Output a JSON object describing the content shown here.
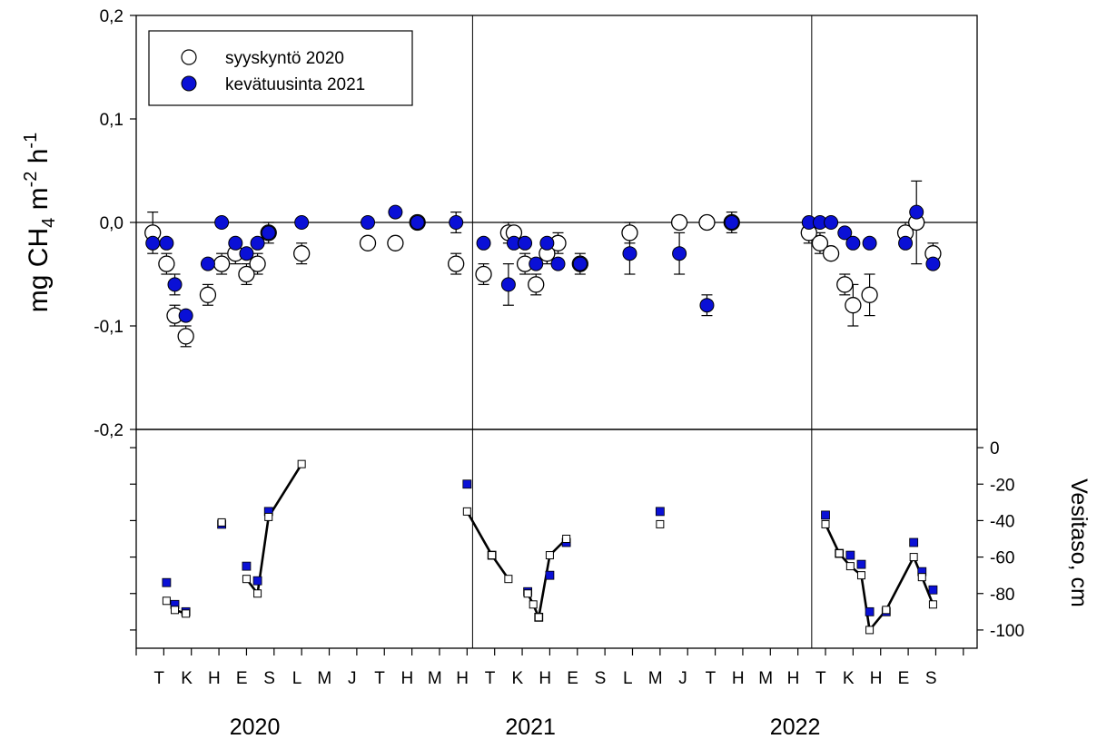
{
  "colors": {
    "axis": "#000000",
    "filled_marker": "#0a10d6",
    "open_marker": "#ffffff",
    "line": "#000000"
  },
  "chart_data": [
    {
      "type": "scatter",
      "ylabel_main": "mg CH",
      "ylabel_sub": "4",
      "ylabel_rest": " m",
      "ylabel_sup1": "-2",
      "ylabel_h": " h",
      "ylabel_sup2": "-1",
      "ylim": [
        -0.2,
        0.2
      ],
      "yticks": [
        {
          "v": 0.2,
          "label": "0,2"
        },
        {
          "v": 0.1,
          "label": "0,1"
        },
        {
          "v": 0.0,
          "label": "0,0"
        },
        {
          "v": -0.1,
          "label": "-0,1"
        },
        {
          "v": -0.2,
          "label": "-0,2"
        }
      ],
      "xlim": [
        0,
        30.5
      ],
      "grid": false,
      "zero_line": true,
      "year_boundaries": [
        12.2,
        24.5
      ],
      "legend_position": "top-left",
      "legend": [
        {
          "label": "syyskyntö 2020",
          "marker": "open-circle"
        },
        {
          "label": "kevätuusinta 2021",
          "marker": "filled-circle"
        }
      ],
      "series": [
        {
          "name": "syyskyntö 2020",
          "marker": "open-circle",
          "points": [
            {
              "x": 0.6,
              "y": -0.01,
              "err": 0.02
            },
            {
              "x": 1.1,
              "y": -0.04,
              "err": 0.01
            },
            {
              "x": 1.4,
              "y": -0.09,
              "err": 0.01
            },
            {
              "x": 1.8,
              "y": -0.11,
              "err": 0.01
            },
            {
              "x": 2.6,
              "y": -0.07,
              "err": 0.01
            },
            {
              "x": 3.1,
              "y": -0.04,
              "err": 0.01
            },
            {
              "x": 3.6,
              "y": -0.03,
              "err": 0.01
            },
            {
              "x": 4.0,
              "y": -0.05,
              "err": 0.01
            },
            {
              "x": 4.4,
              "y": -0.04,
              "err": 0.01
            },
            {
              "x": 4.8,
              "y": -0.01,
              "err": 0.01
            },
            {
              "x": 6.0,
              "y": -0.03,
              "err": 0.01
            },
            {
              "x": 8.4,
              "y": -0.02,
              "err": 0.0
            },
            {
              "x": 9.4,
              "y": -0.02,
              "err": 0.0
            },
            {
              "x": 10.2,
              "y": 0.0,
              "err": 0.0
            },
            {
              "x": 11.6,
              "y": -0.04,
              "err": 0.01
            },
            {
              "x": 12.6,
              "y": -0.05,
              "err": 0.01
            },
            {
              "x": 13.5,
              "y": -0.01,
              "err": 0.01
            },
            {
              "x": 13.7,
              "y": -0.01,
              "err": 0.0
            },
            {
              "x": 14.1,
              "y": -0.04,
              "err": 0.01
            },
            {
              "x": 14.5,
              "y": -0.06,
              "err": 0.01
            },
            {
              "x": 14.9,
              "y": -0.03,
              "err": 0.01
            },
            {
              "x": 15.3,
              "y": -0.02,
              "err": 0.01
            },
            {
              "x": 16.1,
              "y": -0.04,
              "err": 0.01
            },
            {
              "x": 17.9,
              "y": -0.01,
              "err": 0.01
            },
            {
              "x": 19.7,
              "y": 0.0,
              "err": 0.0
            },
            {
              "x": 20.7,
              "y": 0.0,
              "err": 0.0
            },
            {
              "x": 21.6,
              "y": 0.0,
              "err": 0.0
            },
            {
              "x": 24.4,
              "y": -0.01,
              "err": 0.01
            },
            {
              "x": 24.8,
              "y": -0.02,
              "err": 0.01
            },
            {
              "x": 25.2,
              "y": -0.03,
              "err": 0.0
            },
            {
              "x": 25.7,
              "y": -0.06,
              "err": 0.01
            },
            {
              "x": 26.0,
              "y": -0.08,
              "err": 0.02
            },
            {
              "x": 26.6,
              "y": -0.07,
              "err": 0.02
            },
            {
              "x": 27.9,
              "y": -0.01,
              "err": 0.01
            },
            {
              "x": 28.3,
              "y": 0.0,
              "err": 0.04
            },
            {
              "x": 28.9,
              "y": -0.03,
              "err": 0.01
            }
          ]
        },
        {
          "name": "kevätuusinta 2021",
          "marker": "filled-circle",
          "points": [
            {
              "x": 0.6,
              "y": -0.02,
              "err": 0.0
            },
            {
              "x": 1.1,
              "y": -0.02,
              "err": 0.0
            },
            {
              "x": 1.4,
              "y": -0.06,
              "err": 0.01
            },
            {
              "x": 1.8,
              "y": -0.09,
              "err": 0.0
            },
            {
              "x": 2.6,
              "y": -0.04,
              "err": 0.0
            },
            {
              "x": 3.1,
              "y": 0.0,
              "err": 0.0
            },
            {
              "x": 3.6,
              "y": -0.02,
              "err": 0.0
            },
            {
              "x": 4.0,
              "y": -0.03,
              "err": 0.0
            },
            {
              "x": 4.4,
              "y": -0.02,
              "err": 0.0
            },
            {
              "x": 4.8,
              "y": -0.01,
              "err": 0.0
            },
            {
              "x": 6.0,
              "y": 0.0,
              "err": 0.0
            },
            {
              "x": 8.4,
              "y": 0.0,
              "err": 0.0
            },
            {
              "x": 9.4,
              "y": 0.01,
              "err": 0.0
            },
            {
              "x": 10.2,
              "y": 0.0,
              "err": 0.0
            },
            {
              "x": 11.6,
              "y": 0.0,
              "err": 0.01
            },
            {
              "x": 12.6,
              "y": -0.02,
              "err": 0.0
            },
            {
              "x": 13.5,
              "y": -0.06,
              "err": 0.02
            },
            {
              "x": 13.7,
              "y": -0.02,
              "err": 0.0
            },
            {
              "x": 14.1,
              "y": -0.02,
              "err": 0.0
            },
            {
              "x": 14.5,
              "y": -0.04,
              "err": 0.0
            },
            {
              "x": 14.9,
              "y": -0.02,
              "err": 0.0
            },
            {
              "x": 15.3,
              "y": -0.04,
              "err": 0.0
            },
            {
              "x": 16.1,
              "y": -0.04,
              "err": 0.0
            },
            {
              "x": 17.9,
              "y": -0.03,
              "err": 0.02
            },
            {
              "x": 19.7,
              "y": -0.03,
              "err": 0.02
            },
            {
              "x": 20.7,
              "y": -0.08,
              "err": 0.01
            },
            {
              "x": 21.6,
              "y": 0.0,
              "err": 0.01
            },
            {
              "x": 24.4,
              "y": 0.0,
              "err": 0.0
            },
            {
              "x": 24.8,
              "y": 0.0,
              "err": 0.0
            },
            {
              "x": 25.2,
              "y": 0.0,
              "err": 0.0
            },
            {
              "x": 25.7,
              "y": -0.01,
              "err": 0.0
            },
            {
              "x": 26.0,
              "y": -0.02,
              "err": 0.0
            },
            {
              "x": 26.6,
              "y": -0.02,
              "err": 0.0
            },
            {
              "x": 27.9,
              "y": -0.02,
              "err": 0.0
            },
            {
              "x": 28.3,
              "y": 0.01,
              "err": 0.0
            },
            {
              "x": 28.9,
              "y": -0.04,
              "err": 0.0
            }
          ]
        }
      ]
    },
    {
      "type": "line",
      "ylabel": "Vesitaso, cm",
      "ylim": [
        -110,
        10
      ],
      "yticks": [
        {
          "v": 0,
          "label": "0"
        },
        {
          "v": -20,
          "label": "-20"
        },
        {
          "v": -40,
          "label": "-40"
        },
        {
          "v": -60,
          "label": "-60"
        },
        {
          "v": -80,
          "label": "-80"
        },
        {
          "v": -100,
          "label": "-100"
        }
      ],
      "xlim": [
        0,
        30.5
      ],
      "month_ticks": [
        {
          "x": 0.5,
          "label": "T"
        },
        {
          "x": 1.5,
          "label": "K"
        },
        {
          "x": 2.5,
          "label": "H"
        },
        {
          "x": 3.5,
          "label": "E"
        },
        {
          "x": 4.5,
          "label": "S"
        },
        {
          "x": 5.5,
          "label": "L"
        },
        {
          "x": 6.5,
          "label": "M"
        },
        {
          "x": 7.5,
          "label": "J"
        },
        {
          "x": 8.5,
          "label": "T"
        },
        {
          "x": 9.5,
          "label": "H"
        },
        {
          "x": 10.5,
          "label": "M"
        },
        {
          "x": 11.5,
          "label": "H"
        },
        {
          "x": 12.5,
          "label": "T"
        },
        {
          "x": 13.5,
          "label": "K"
        },
        {
          "x": 14.5,
          "label": "H"
        },
        {
          "x": 15.5,
          "label": "E"
        },
        {
          "x": 16.5,
          "label": "S"
        },
        {
          "x": 17.5,
          "label": "L"
        },
        {
          "x": 18.5,
          "label": "M"
        },
        {
          "x": 19.5,
          "label": "J"
        },
        {
          "x": 20.5,
          "label": "T"
        },
        {
          "x": 21.5,
          "label": "H"
        },
        {
          "x": 22.5,
          "label": "M"
        },
        {
          "x": 23.5,
          "label": "H"
        },
        {
          "x": 24.5,
          "label": "T"
        },
        {
          "x": 25.5,
          "label": "K"
        },
        {
          "x": 26.5,
          "label": "H"
        },
        {
          "x": 27.5,
          "label": "E"
        },
        {
          "x": 28.5,
          "label": "S"
        }
      ],
      "years": [
        {
          "x": 4.3,
          "label": "2020"
        },
        {
          "x": 14.3,
          "label": "2021"
        },
        {
          "x": 23.9,
          "label": "2022"
        }
      ],
      "year_boundaries": [
        12.2,
        24.5
      ],
      "series": [
        {
          "name": "syyskyntö 2020",
          "marker": "open-square",
          "points": [
            {
              "x": 1.1,
              "y": -84
            },
            {
              "x": 1.4,
              "y": -89
            },
            {
              "x": 1.8,
              "y": -91
            },
            {
              "x": 3.1,
              "y": -41
            },
            {
              "x": 4.0,
              "y": -72
            },
            {
              "x": 4.4,
              "y": -80
            },
            {
              "x": 4.8,
              "y": -38
            },
            {
              "x": 6.0,
              "y": -9
            },
            {
              "x": 12.0,
              "y": -35
            },
            {
              "x": 12.9,
              "y": -59
            },
            {
              "x": 13.5,
              "y": -72
            },
            {
              "x": 14.2,
              "y": -80
            },
            {
              "x": 14.4,
              "y": -86
            },
            {
              "x": 14.6,
              "y": -93
            },
            {
              "x": 15.0,
              "y": -59
            },
            {
              "x": 15.6,
              "y": -50
            },
            {
              "x": 19.0,
              "y": -42
            },
            {
              "x": 25.0,
              "y": -42
            },
            {
              "x": 25.5,
              "y": -58
            },
            {
              "x": 25.9,
              "y": -65
            },
            {
              "x": 26.3,
              "y": -70
            },
            {
              "x": 26.6,
              "y": -100
            },
            {
              "x": 27.2,
              "y": -89
            },
            {
              "x": 28.2,
              "y": -60
            },
            {
              "x": 28.5,
              "y": -71
            },
            {
              "x": 28.9,
              "y": -86
            }
          ],
          "segments": [
            [
              1,
              2
            ],
            [
              4,
              5,
              6,
              7
            ],
            [
              8,
              9,
              10
            ],
            [
              11,
              12,
              13,
              14,
              15
            ],
            [
              17,
              18,
              19,
              20,
              21,
              22,
              23,
              24,
              25
            ]
          ]
        },
        {
          "name": "kevätuusinta 2021",
          "marker": "filled-square",
          "points": [
            {
              "x": 1.1,
              "y": -74
            },
            {
              "x": 1.4,
              "y": -86
            },
            {
              "x": 1.8,
              "y": -90
            },
            {
              "x": 3.1,
              "y": -42
            },
            {
              "x": 4.0,
              "y": -65
            },
            {
              "x": 4.4,
              "y": -73
            },
            {
              "x": 4.8,
              "y": -35
            },
            {
              "x": 12.0,
              "y": -20
            },
            {
              "x": 12.9,
              "y": -59
            },
            {
              "x": 14.2,
              "y": -79
            },
            {
              "x": 14.6,
              "y": -93
            },
            {
              "x": 15.0,
              "y": -70
            },
            {
              "x": 15.6,
              "y": -52
            },
            {
              "x": 19.0,
              "y": -35
            },
            {
              "x": 25.0,
              "y": -37
            },
            {
              "x": 25.5,
              "y": -58
            },
            {
              "x": 25.9,
              "y": -59
            },
            {
              "x": 26.3,
              "y": -64
            },
            {
              "x": 26.6,
              "y": -90
            },
            {
              "x": 27.2,
              "y": -90
            },
            {
              "x": 28.2,
              "y": -52
            },
            {
              "x": 28.5,
              "y": -68
            },
            {
              "x": 28.9,
              "y": -78
            }
          ]
        }
      ]
    }
  ]
}
